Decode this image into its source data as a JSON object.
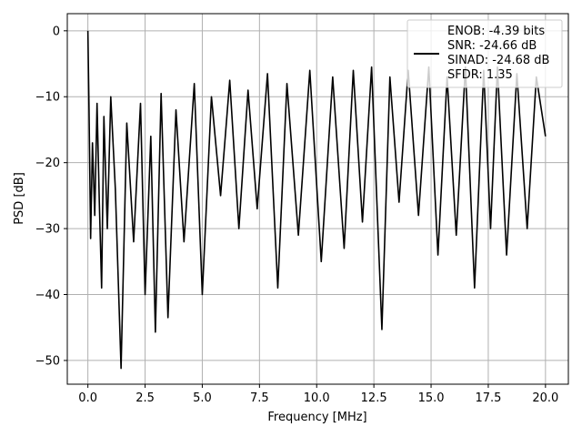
{
  "chart_data": {
    "type": "line",
    "xlabel": "Frequency [MHz]",
    "ylabel": "PSD [dB]",
    "xlim": [
      -0.9,
      21.0
    ],
    "ylim": [
      -53.6,
      2.6
    ],
    "xticks": [
      0.0,
      2.5,
      5.0,
      7.5,
      10.0,
      12.5,
      15.0,
      17.5,
      20.0
    ],
    "xtick_labels": [
      "0.0",
      "2.5",
      "5.0",
      "7.5",
      "10.0",
      "12.5",
      "15.0",
      "17.5",
      "20.0"
    ],
    "yticks": [
      0,
      -10,
      -20,
      -30,
      -40,
      -50
    ],
    "ytick_labels": [
      "0",
      "−10",
      "−20",
      "−30",
      "−40",
      "−50"
    ],
    "grid": true,
    "legend_position": "top-right",
    "series": [
      {
        "name": "ENOB: -4.39 bits\nSNR: -24.66 dB\nSINAD: -24.68 dB\nSFDR: 1.35",
        "color": "#000000",
        "x": [
          0.0,
          0.05,
          0.12,
          0.2,
          0.3,
          0.4,
          0.5,
          0.6,
          0.7,
          0.85,
          1.0,
          1.2,
          1.45,
          1.7,
          2.0,
          2.3,
          2.5,
          2.75,
          2.95,
          3.2,
          3.5,
          3.85,
          4.2,
          4.65,
          5.0,
          5.4,
          5.8,
          6.2,
          6.6,
          7.0,
          7.4,
          7.85,
          8.3,
          8.7,
          9.2,
          9.7,
          10.2,
          10.7,
          11.2,
          11.6,
          12.0,
          12.4,
          12.85,
          13.2,
          13.6,
          14.0,
          14.45,
          14.9,
          15.3,
          15.7,
          16.1,
          16.5,
          16.9,
          17.3,
          17.6,
          17.9,
          18.3,
          18.75,
          19.2,
          19.6,
          20.0
        ],
        "y": [
          0.0,
          -12.0,
          -31.5,
          -17.0,
          -28.0,
          -11.0,
          -26.0,
          -39.0,
          -13.0,
          -30.0,
          -10.0,
          -24.0,
          -51.2,
          -14.0,
          -32.0,
          -11.0,
          -40.0,
          -16.0,
          -45.7,
          -9.5,
          -43.5,
          -12.0,
          -32.0,
          -8.0,
          -40.0,
          -10.0,
          -25.0,
          -7.5,
          -30.0,
          -9.0,
          -27.0,
          -6.5,
          -39.0,
          -8.0,
          -31.0,
          -6.0,
          -35.0,
          -7.0,
          -33.0,
          -6.0,
          -29.0,
          -5.5,
          -45.3,
          -7.0,
          -26.0,
          -6.0,
          -28.0,
          -5.5,
          -34.0,
          -7.0,
          -31.0,
          -5.5,
          -39.0,
          -6.0,
          -30.0,
          -5.5,
          -34.0,
          -6.5,
          -30.0,
          -7.0,
          -16.0
        ]
      }
    ]
  }
}
